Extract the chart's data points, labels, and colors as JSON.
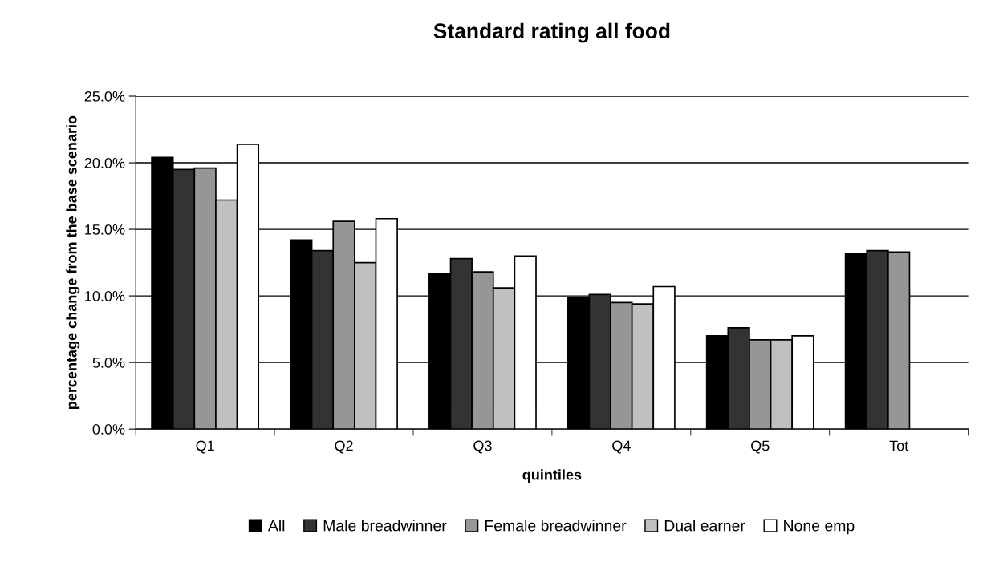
{
  "chart_data": {
    "type": "bar",
    "title": "Standard rating all food",
    "xlabel": "quintiles",
    "ylabel": "percentage change from the base scenario",
    "categories": [
      "Q1",
      "Q2",
      "Q3",
      "Q4",
      "Q5",
      "Tot"
    ],
    "series": [
      {
        "name": "All",
        "color": "#000000",
        "values": [
          20.4,
          14.2,
          11.7,
          9.9,
          7.0,
          13.2
        ]
      },
      {
        "name": "Male breadwinner",
        "color": "#333333",
        "values": [
          19.5,
          13.4,
          12.8,
          10.1,
          7.6,
          13.4
        ]
      },
      {
        "name": "Female breadwinner",
        "color": "#969696",
        "values": [
          19.6,
          15.6,
          11.8,
          9.5,
          6.7,
          13.3
        ]
      },
      {
        "name": "Dual earner",
        "color": "#c0c0c0",
        "values": [
          17.2,
          12.5,
          10.6,
          9.4,
          6.7,
          null
        ]
      },
      {
        "name": "None emp",
        "color": "#ffffff",
        "values": [
          21.4,
          15.8,
          13.0,
          10.7,
          7.0,
          null
        ]
      }
    ],
    "ylim": [
      0,
      25
    ],
    "yticks": [
      {
        "value": 0,
        "label": "0.0%"
      },
      {
        "value": 5,
        "label": "5.0%"
      },
      {
        "value": 10,
        "label": "10.0%"
      },
      {
        "value": 15,
        "label": "15.0%"
      },
      {
        "value": 20,
        "label": "20.0%"
      },
      {
        "value": 25,
        "label": "25.0%"
      }
    ],
    "grid": "y",
    "legend": "bottom"
  }
}
